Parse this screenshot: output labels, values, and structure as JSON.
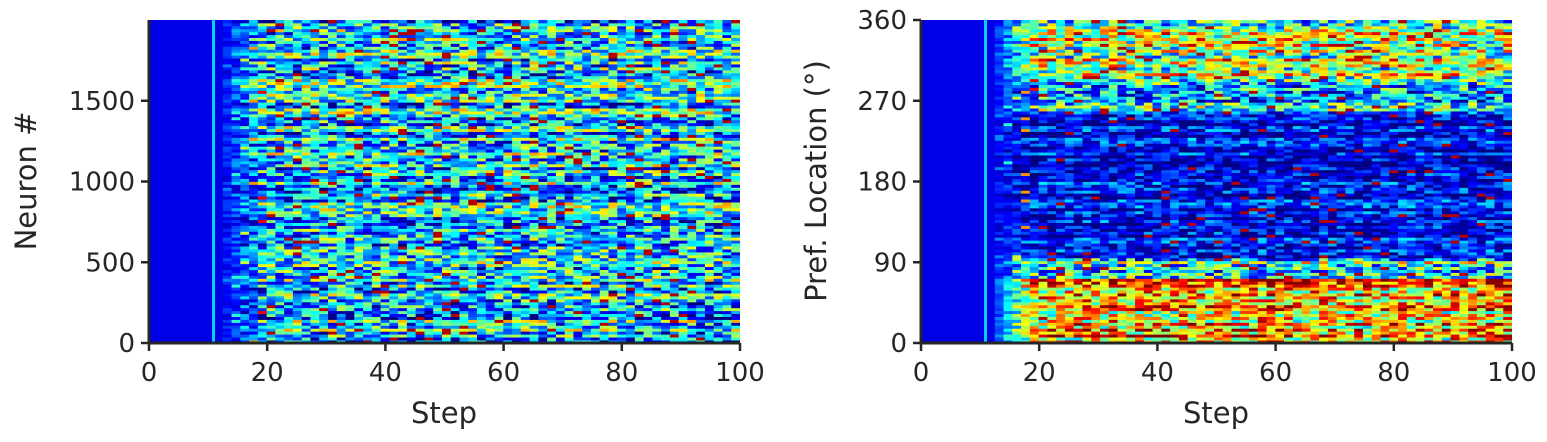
{
  "chart_data": [
    {
      "type": "heatmap",
      "xlabel": "Step",
      "ylabel": "Neuron #",
      "xlim": [
        0,
        100
      ],
      "ylim": [
        0,
        2000
      ],
      "xticks": [
        0,
        20,
        40,
        60,
        80,
        100
      ],
      "xtick_labels": [
        "0",
        "20",
        "40",
        "60",
        "80",
        "100"
      ],
      "yticks": [
        0,
        500,
        1000,
        1500
      ],
      "ytick_labels": [
        "0",
        "500",
        "1000",
        "1500"
      ],
      "colormap": "jet",
      "onset_step": 11,
      "grid": false,
      "pattern": "uniform"
    },
    {
      "type": "heatmap",
      "xlabel": "Step",
      "ylabel": "Pref. Location (°)",
      "xlim": [
        0,
        100
      ],
      "ylim": [
        0,
        360
      ],
      "xticks": [
        0,
        20,
        40,
        60,
        80,
        100
      ],
      "xtick_labels": [
        "0",
        "20",
        "40",
        "60",
        "80",
        "100"
      ],
      "yticks": [
        0,
        90,
        180,
        270,
        360
      ],
      "ytick_labels": [
        "0",
        "90",
        "180",
        "270",
        "360"
      ],
      "colormap": "jet",
      "onset_step": 11,
      "grid": false,
      "pattern": "bimodal"
    }
  ],
  "colors": {
    "axis": "#262626",
    "background": "#ffffff"
  }
}
